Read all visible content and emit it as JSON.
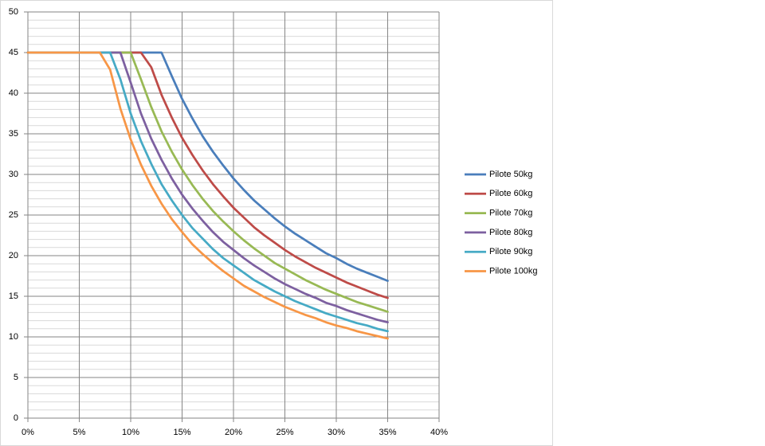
{
  "chart_data": {
    "type": "line",
    "x": [
      0,
      1,
      2,
      3,
      4,
      5,
      6,
      7,
      8,
      9,
      10,
      11,
      12,
      13,
      14,
      15,
      16,
      17,
      18,
      19,
      20,
      21,
      22,
      23,
      24,
      25,
      26,
      27,
      28,
      29,
      30,
      31,
      32,
      33,
      34,
      35
    ],
    "series": [
      {
        "name": "Pilote 50kg",
        "color": "#4a7ebb",
        "values": [
          45,
          45,
          45,
          45,
          45,
          45,
          45,
          45,
          45,
          45,
          45,
          45,
          45,
          45,
          42.1,
          39.3,
          36.9,
          34.7,
          32.8,
          31.1,
          29.5,
          28.1,
          26.8,
          25.7,
          24.6,
          23.6,
          22.7,
          21.9,
          21.1,
          20.3,
          19.7,
          19.0,
          18.4,
          17.9,
          17.4,
          16.9
        ]
      },
      {
        "name": "Pilote 60kg",
        "color": "#be4b48",
        "values": [
          45,
          45,
          45,
          45,
          45,
          45,
          45,
          45,
          45,
          45,
          45,
          45,
          43.2,
          39.8,
          37.0,
          34.5,
          32.4,
          30.5,
          28.8,
          27.3,
          25.9,
          24.7,
          23.5,
          22.5,
          21.6,
          20.7,
          19.9,
          19.2,
          18.5,
          17.9,
          17.3,
          16.7,
          16.2,
          15.7,
          15.2,
          14.8
        ]
      },
      {
        "name": "Pilote 70kg",
        "color": "#98b954",
        "values": [
          45,
          45,
          45,
          45,
          45,
          45,
          45,
          45,
          45,
          45,
          45,
          41.7,
          38.3,
          35.3,
          32.8,
          30.6,
          28.7,
          27.0,
          25.5,
          24.2,
          23.0,
          21.9,
          20.9,
          20.0,
          19.1,
          18.4,
          17.7,
          17.0,
          16.4,
          15.8,
          15.3,
          14.8,
          14.3,
          13.9,
          13.5,
          13.1
        ]
      },
      {
        "name": "Pilote 80kg",
        "color": "#7d60a0",
        "values": [
          45,
          45,
          45,
          45,
          45,
          45,
          45,
          45,
          45,
          45,
          41.3,
          37.5,
          34.4,
          31.8,
          29.5,
          27.5,
          25.8,
          24.3,
          22.9,
          21.7,
          20.7,
          19.7,
          18.8,
          18.0,
          17.2,
          16.5,
          15.9,
          15.3,
          14.8,
          14.2,
          13.8,
          13.3,
          12.9,
          12.5,
          12.1,
          11.8
        ]
      },
      {
        "name": "Pilote 90kg",
        "color": "#46aac5",
        "values": [
          45,
          45,
          45,
          45,
          45,
          45,
          45,
          45,
          45,
          41.7,
          37.5,
          34.1,
          31.3,
          28.8,
          26.8,
          25.0,
          23.4,
          22.1,
          20.8,
          19.7,
          18.8,
          17.9,
          17.0,
          16.3,
          15.6,
          15.0,
          14.4,
          13.9,
          13.4,
          12.9,
          12.5,
          12.1,
          11.7,
          11.4,
          11.0,
          10.7
        ]
      },
      {
        "name": "Pilote 100kg",
        "color": "#f79646",
        "values": [
          45,
          45,
          45,
          45,
          45,
          45,
          45,
          45,
          42.9,
          38.1,
          34.3,
          31.2,
          28.6,
          26.4,
          24.5,
          22.9,
          21.4,
          20.2,
          19.1,
          18.1,
          17.2,
          16.3,
          15.6,
          14.9,
          14.3,
          13.7,
          13.2,
          12.7,
          12.3,
          11.8,
          11.4,
          11.1,
          10.7,
          10.4,
          10.1,
          9.8
        ]
      }
    ],
    "xlim": [
      0,
      40
    ],
    "xticks": [
      {
        "value": 0,
        "label": "0%"
      },
      {
        "value": 5,
        "label": "5%"
      },
      {
        "value": 10,
        "label": "10%"
      },
      {
        "value": 15,
        "label": "15%"
      },
      {
        "value": 20,
        "label": "20%"
      },
      {
        "value": 25,
        "label": "25%"
      },
      {
        "value": 30,
        "label": "30%"
      },
      {
        "value": 35,
        "label": "35%"
      },
      {
        "value": 40,
        "label": "40%"
      }
    ],
    "ylim": [
      0,
      50
    ],
    "yticks": [
      0,
      5,
      10,
      15,
      20,
      25,
      30,
      35,
      40,
      45,
      50
    ],
    "y_minor_grid_step": 1,
    "grid": true,
    "legend": "right"
  }
}
